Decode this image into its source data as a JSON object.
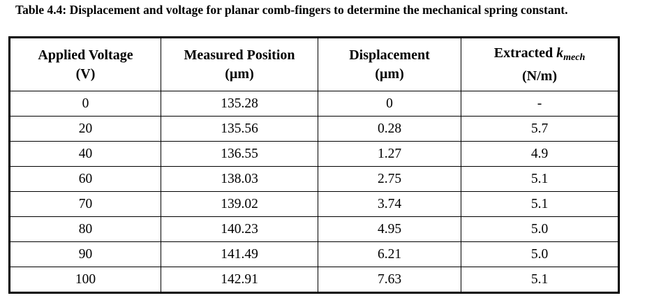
{
  "caption": "Table 4.4: Displacement and voltage for planar comb-fingers to determine the mechanical spring constant.",
  "table": {
    "header": [
      {
        "lines": [
          "Applied Voltage",
          "(V)"
        ]
      },
      {
        "lines": [
          "Measured Position",
          "(µm)"
        ]
      },
      {
        "lines": [
          "Displacement",
          "(µm)"
        ]
      },
      {
        "lines": [
          "Extracted",
          "(N/m)"
        ],
        "symbol": "k",
        "subscript": "mech"
      }
    ],
    "rows": [
      [
        "0",
        "135.28",
        "0",
        "-"
      ],
      [
        "20",
        "135.56",
        "0.28",
        "5.7"
      ],
      [
        "40",
        "136.55",
        "1.27",
        "4.9"
      ],
      [
        "60",
        "138.03",
        "2.75",
        "5.1"
      ],
      [
        "70",
        "139.02",
        "3.74",
        "5.1"
      ],
      [
        "80",
        "140.23",
        "4.95",
        "5.0"
      ],
      [
        "90",
        "141.49",
        "6.21",
        "5.0"
      ],
      [
        "100",
        "142.91",
        "7.63",
        "5.1"
      ]
    ]
  }
}
